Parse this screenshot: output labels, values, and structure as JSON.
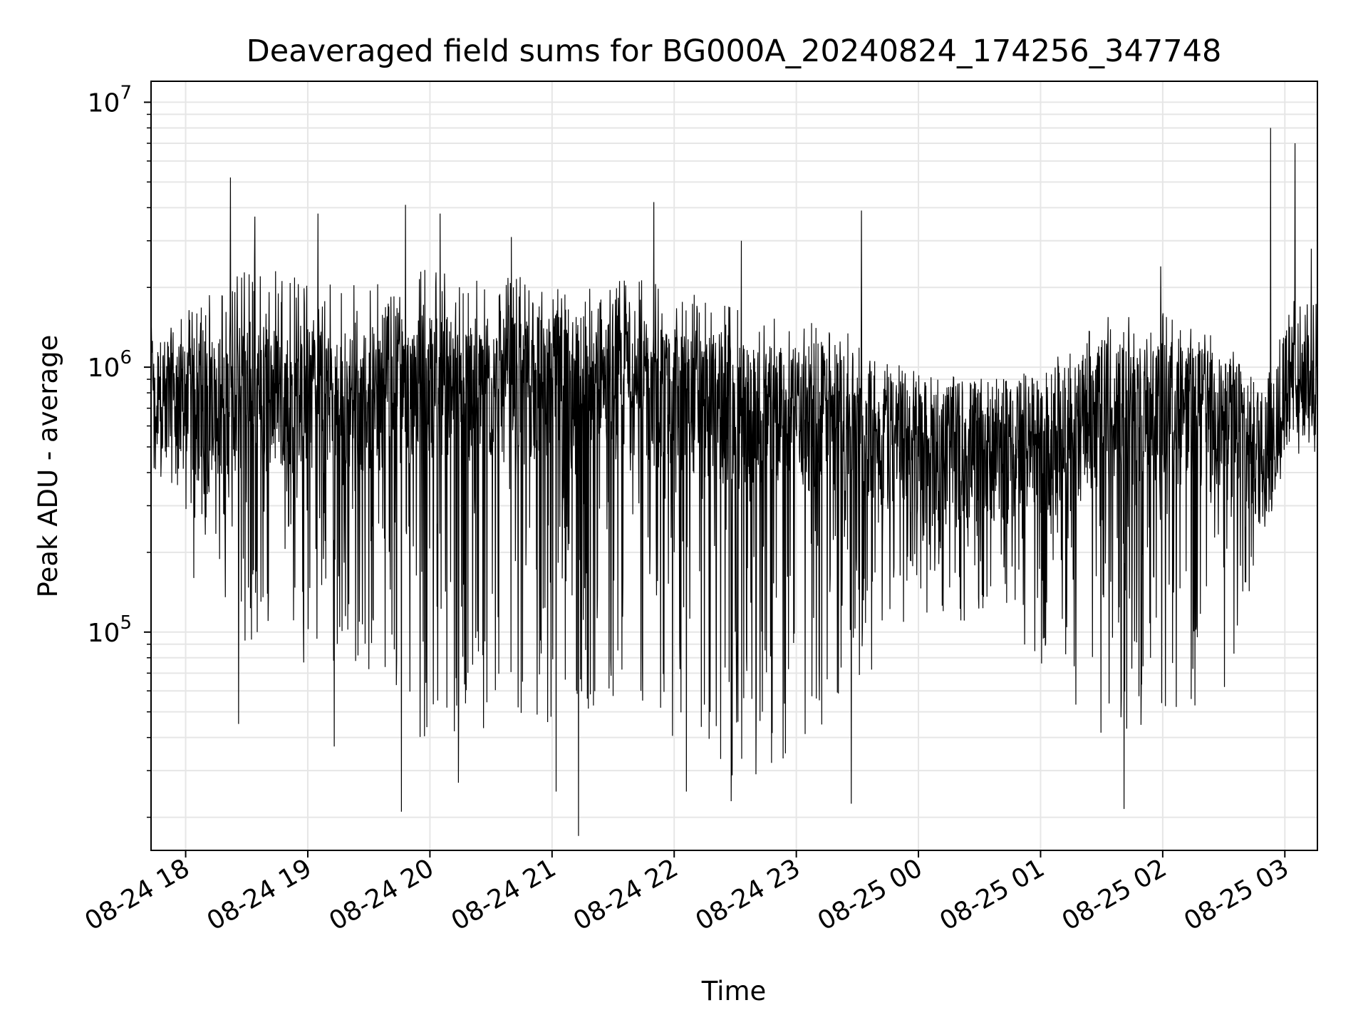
{
  "chart_data": {
    "type": "line",
    "title": "Deaveraged field sums for BG000A_20240824_174256_347748",
    "xlabel": "Time",
    "ylabel": "Peak ADU - average",
    "yscale": "log",
    "ylim": [
      15000,
      12000000
    ],
    "xlim": [
      "2024-08-24 17:43",
      "2024-08-25 03:16"
    ],
    "grid": true,
    "line_color": "#000000",
    "grid_color": "#e6e6e6",
    "x_ticks": [
      {
        "value": "2024-08-24 18:00",
        "label": "08-24 18"
      },
      {
        "value": "2024-08-24 19:00",
        "label": "08-24 19"
      },
      {
        "value": "2024-08-24 20:00",
        "label": "08-24 20"
      },
      {
        "value": "2024-08-24 21:00",
        "label": "08-24 21"
      },
      {
        "value": "2024-08-24 22:00",
        "label": "08-24 22"
      },
      {
        "value": "2024-08-24 23:00",
        "label": "08-24 23"
      },
      {
        "value": "2024-08-25 00:00",
        "label": "08-25 00"
      },
      {
        "value": "2024-08-25 01:00",
        "label": "08-25 01"
      },
      {
        "value": "2024-08-25 02:00",
        "label": "08-25 02"
      },
      {
        "value": "2024-08-25 03:00",
        "label": "08-25 03"
      }
    ],
    "y_ticks": [
      {
        "value": 100000,
        "base": "10",
        "exp": "5"
      },
      {
        "value": 1000000,
        "base": "10",
        "exp": "6"
      },
      {
        "value": 10000000,
        "base": "10",
        "exp": "7"
      }
    ],
    "series": [
      {
        "envelope": [
          {
            "x": "2024-08-24 17:43",
            "median": 720000,
            "high": 1600000,
            "low": 380000
          },
          {
            "x": "2024-08-24 17:50",
            "median": 700000,
            "high": 1500000,
            "low": 400000
          },
          {
            "x": "2024-08-24 18:00",
            "median": 650000,
            "high": 1900000,
            "low": 280000
          },
          {
            "x": "2024-08-24 18:15",
            "median": 700000,
            "high": 2400000,
            "low": 150000
          },
          {
            "x": "2024-08-24 18:30",
            "median": 800000,
            "high": 3500000,
            "low": 90000
          },
          {
            "x": "2024-08-24 19:00",
            "median": 750000,
            "high": 2600000,
            "low": 70000
          },
          {
            "x": "2024-08-24 19:30",
            "median": 750000,
            "high": 2500000,
            "low": 70000
          },
          {
            "x": "2024-08-24 20:00",
            "median": 850000,
            "high": 3000000,
            "low": 35000
          },
          {
            "x": "2024-08-24 20:30",
            "median": 800000,
            "high": 2600000,
            "low": 40000
          },
          {
            "x": "2024-08-24 21:00",
            "median": 850000,
            "high": 2600000,
            "low": 45000
          },
          {
            "x": "2024-08-24 21:30",
            "median": 850000,
            "high": 2600000,
            "low": 50000
          },
          {
            "x": "2024-08-24 22:00",
            "median": 750000,
            "high": 2500000,
            "low": 40000
          },
          {
            "x": "2024-08-24 22:30",
            "median": 650000,
            "high": 2000000,
            "low": 28000
          },
          {
            "x": "2024-08-24 23:00",
            "median": 650000,
            "high": 1800000,
            "low": 30000
          },
          {
            "x": "2024-08-24 23:30",
            "median": 600000,
            "high": 1500000,
            "low": 60000
          },
          {
            "x": "2024-08-25 00:00",
            "median": 500000,
            "high": 1100000,
            "low": 120000
          },
          {
            "x": "2024-08-25 00:30",
            "median": 480000,
            "high": 1000000,
            "low": 100000
          },
          {
            "x": "2024-08-25 01:00",
            "median": 480000,
            "high": 1100000,
            "low": 70000
          },
          {
            "x": "2024-08-25 01:30",
            "median": 650000,
            "high": 1800000,
            "low": 40000
          },
          {
            "x": "2024-08-25 02:00",
            "median": 700000,
            "high": 1900000,
            "low": 45000
          },
          {
            "x": "2024-08-25 02:30",
            "median": 600000,
            "high": 1500000,
            "low": 60000
          },
          {
            "x": "2024-08-25 02:50",
            "median": 450000,
            "high": 1000000,
            "low": 180000
          },
          {
            "x": "2024-08-25 03:00",
            "median": 800000,
            "high": 2000000,
            "low": 500000
          },
          {
            "x": "2024-08-25 03:16",
            "median": 900000,
            "high": 2200000,
            "low": 550000
          }
        ],
        "spikes": [
          {
            "x": "2024-08-24 18:22",
            "value": 5200000
          },
          {
            "x": "2024-08-24 18:34",
            "value": 3700000
          },
          {
            "x": "2024-08-24 18:26",
            "value": 45000
          },
          {
            "x": "2024-08-24 18:04",
            "value": 160000
          },
          {
            "x": "2024-08-24 19:05",
            "value": 3800000
          },
          {
            "x": "2024-08-24 19:13",
            "value": 37000
          },
          {
            "x": "2024-08-24 19:46",
            "value": 21000
          },
          {
            "x": "2024-08-24 19:48",
            "value": 4100000
          },
          {
            "x": "2024-08-24 20:05",
            "value": 3800000
          },
          {
            "x": "2024-08-24 20:14",
            "value": 27000
          },
          {
            "x": "2024-08-24 20:40",
            "value": 3100000
          },
          {
            "x": "2024-08-24 21:02",
            "value": 25000
          },
          {
            "x": "2024-08-24 21:13",
            "value": 17000
          },
          {
            "x": "2024-08-24 21:50",
            "value": 4200000
          },
          {
            "x": "2024-08-24 22:06",
            "value": 25000
          },
          {
            "x": "2024-08-24 22:33",
            "value": 3000000
          },
          {
            "x": "2024-08-24 22:28",
            "value": 23000
          },
          {
            "x": "2024-08-24 23:27",
            "value": 22500
          },
          {
            "x": "2024-08-24 23:32",
            "value": 3900000
          },
          {
            "x": "2024-08-25 01:41",
            "value": 21500
          },
          {
            "x": "2024-08-25 01:59",
            "value": 2400000
          },
          {
            "x": "2024-08-25 02:53",
            "value": 8000000
          },
          {
            "x": "2024-08-25 03:05",
            "value": 7000000
          },
          {
            "x": "2024-08-25 03:13",
            "value": 2800000
          }
        ],
        "samples_per_minute": 6
      }
    ]
  }
}
